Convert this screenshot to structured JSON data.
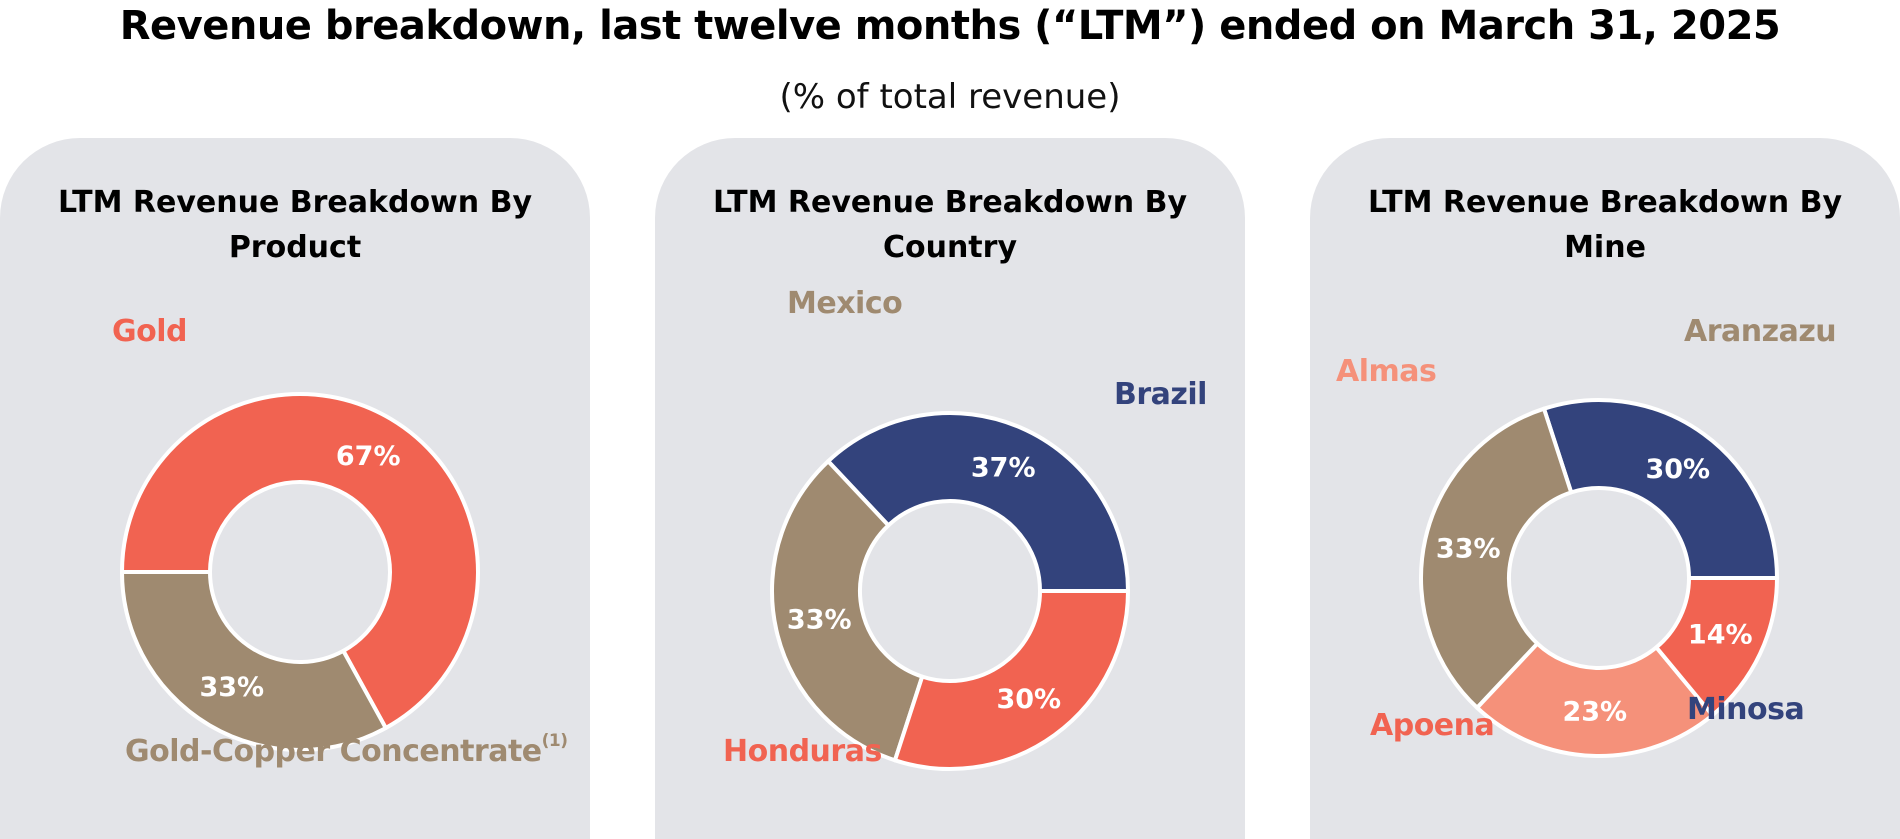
{
  "header": {
    "title": "Revenue breakdown, last twelve months (“LTM”) ended on March 31, 2025",
    "subtitle": "(% of total revenue)"
  },
  "colors": {
    "panel_bg": "#e3e4e8",
    "coral": "#f16351",
    "tan": "#9f8a70",
    "navy": "#33437c",
    "salmon": "#f5917a",
    "separator": "#ffffff"
  },
  "chart_data": [
    {
      "type": "pie",
      "title_lines": [
        "LTM Revenue Breakdown By",
        "Product"
      ],
      "start_angle_deg": 180,
      "direction": "clockwise",
      "slices": [
        {
          "name": "Gold",
          "value": 67,
          "label": "67%",
          "color": "#f16351"
        },
        {
          "name": "Gold-Copper Concentrate",
          "name_sup": "(1)",
          "value": 33,
          "label": "33%",
          "color": "#9f8a70"
        }
      ]
    },
    {
      "type": "pie",
      "title_lines": [
        "LTM Revenue Breakdown By",
        "Country"
      ],
      "start_angle_deg": 0,
      "direction": "counterclockwise",
      "slices": [
        {
          "name": "Brazil",
          "value": 37,
          "label": "37%",
          "color": "#33437c"
        },
        {
          "name": "Mexico",
          "value": 33,
          "label": "33%",
          "color": "#9f8a70"
        },
        {
          "name": "Honduras",
          "value": 30,
          "label": "30%",
          "color": "#f16351"
        }
      ]
    },
    {
      "type": "pie",
      "title_lines": [
        "LTM Revenue Breakdown By",
        "Mine"
      ],
      "start_angle_deg": 0,
      "direction": "counterclockwise",
      "slices": [
        {
          "name": "Minosa",
          "value": 30,
          "label": "30%",
          "color": "#33437c"
        },
        {
          "name": "Aranzazu",
          "value": 33,
          "label": "33%",
          "color": "#9f8a70"
        },
        {
          "name": "Almas",
          "value": 23,
          "label": "23%",
          "color": "#f5917a"
        },
        {
          "name": "Apoena",
          "value": 14,
          "label": "14%",
          "color": "#f16351"
        }
      ]
    }
  ]
}
